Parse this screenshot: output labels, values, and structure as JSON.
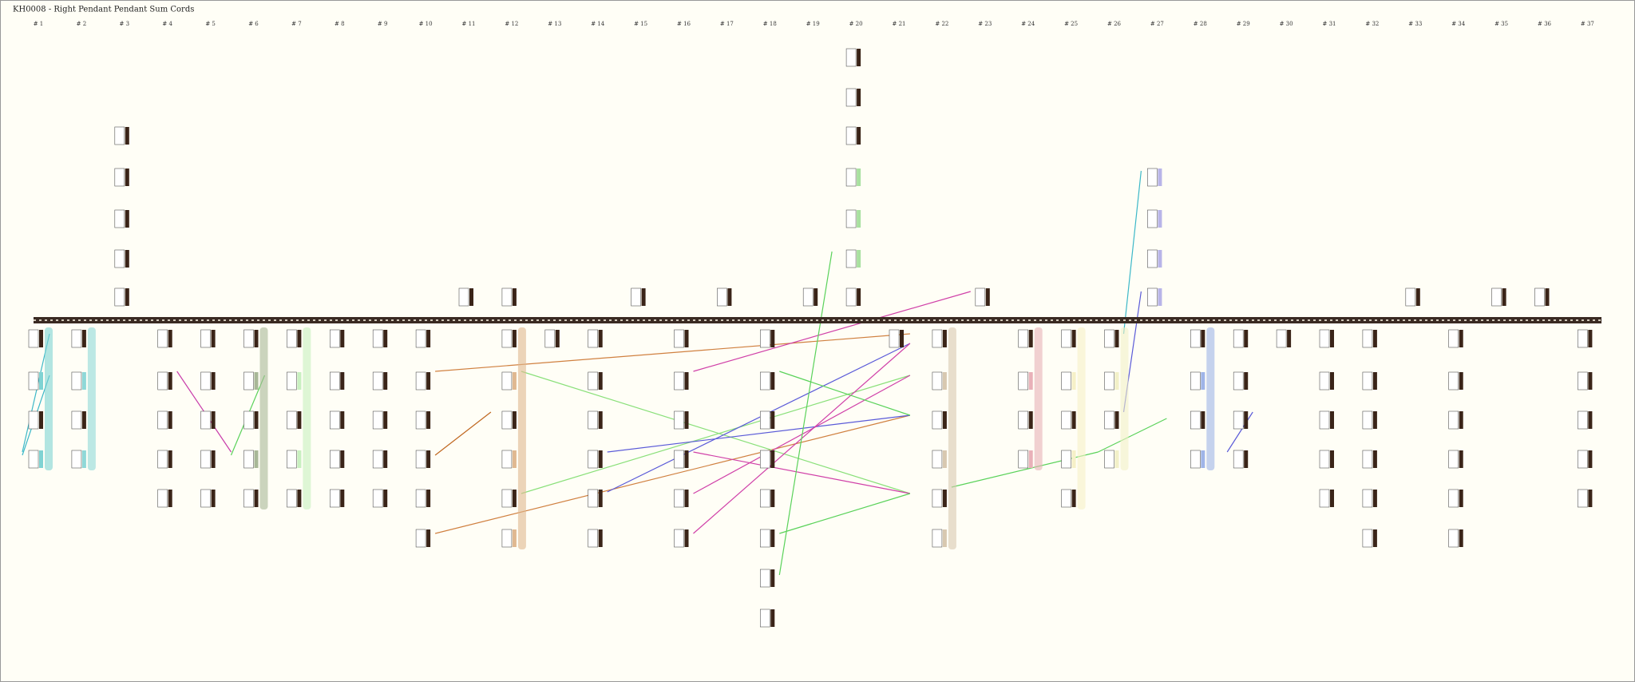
{
  "title": "KH0008 - Right Pendant Pendant Sum Cords",
  "columns": [
    "# 1",
    "# 2",
    "# 3",
    "# 4",
    "# 5",
    "# 6",
    "# 7",
    "# 8",
    "# 9",
    "# 10",
    "# 11",
    "# 12",
    "# 13",
    "# 14",
    "# 15",
    "# 16",
    "# 17",
    "# 18",
    "# 19",
    "# 20",
    "# 21",
    "# 22",
    "# 23",
    "# 24",
    "# 25",
    "# 26",
    "# 27",
    "# 28",
    "# 29",
    "# 30",
    "# 31",
    "# 32",
    "# 33",
    "# 34",
    "# 35",
    "# 36",
    "# 37"
  ]
}
